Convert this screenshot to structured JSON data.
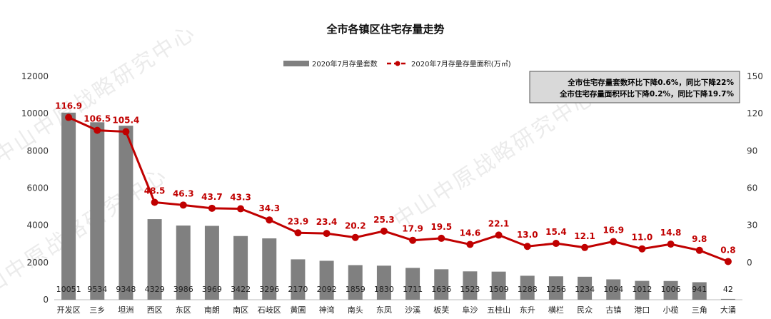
{
  "chart_data": {
    "type": "bar+line",
    "title": "全市各镇区住宅存量走势",
    "categories": [
      "开发区",
      "三乡",
      "坦洲",
      "西区",
      "东区",
      "南朗",
      "南区",
      "石岐区",
      "黄圃",
      "神湾",
      "南头",
      "东凤",
      "沙溪",
      "板芙",
      "阜沙",
      "五桂山",
      "东升",
      "横栏",
      "民众",
      "古镇",
      "港口",
      "小榄",
      "三角",
      "大涌"
    ],
    "series": [
      {
        "name": "2020年7月存量套数",
        "type": "bar",
        "axis": "left",
        "color": "#808080",
        "values": [
          10051,
          9534,
          9348,
          4329,
          3986,
          3969,
          3422,
          3296,
          2170,
          2092,
          1859,
          1830,
          1711,
          1636,
          1523,
          1509,
          1288,
          1256,
          1234,
          1094,
          1012,
          1006,
          941,
          42
        ]
      },
      {
        "name": "2020年7月存量存量面积(万㎡)",
        "type": "line",
        "axis": "right",
        "color": "#c00000",
        "values": [
          116.9,
          106.5,
          105.4,
          48.5,
          46.3,
          43.7,
          43.3,
          34.3,
          23.9,
          23.4,
          20.2,
          25.3,
          17.9,
          19.5,
          14.6,
          22.1,
          13.0,
          15.4,
          12.1,
          16.9,
          11.0,
          14.8,
          9.8,
          0.8
        ]
      }
    ],
    "y_left": {
      "min": 0,
      "max": 12000,
      "ticks": [
        0,
        2000,
        4000,
        6000,
        8000,
        10000,
        12000
      ]
    },
    "y_right": {
      "min": -30,
      "max": 150,
      "ticks": [
        0,
        30,
        60,
        90,
        120,
        150
      ]
    },
    "legend_position": "top-center",
    "grid": false,
    "annotation": [
      "全市住宅存量套数环比下降0.6%，同比下降22%",
      "全市住宅存量面积环比下降0.2%，同比下降19.7%"
    ],
    "watermark": "中山中原战略研究中心"
  }
}
